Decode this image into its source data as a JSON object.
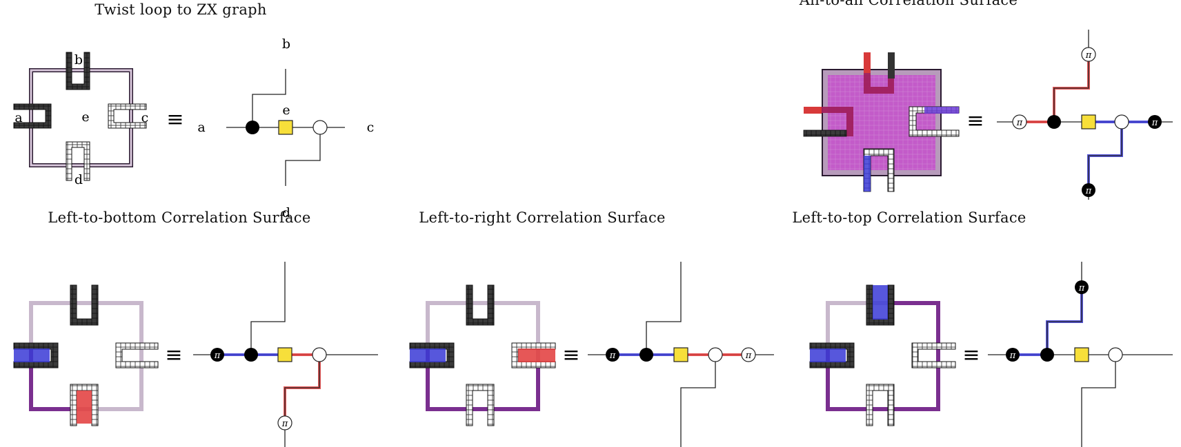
{
  "titles": {
    "twist": "Twist loop to ZX graph",
    "all": "All-to-all Correlation Surface",
    "bottom": "Left-to-bottom Correlation Surface",
    "right": "Left-to-right Correlation Surface",
    "top": "Left-to-top Correlation Surface"
  },
  "labels": {
    "a": "a",
    "b": "b",
    "c": "c",
    "d": "d",
    "e": "e",
    "equiv": "≡",
    "pi": "π"
  },
  "colors": {
    "x_spider": "#000000",
    "z_spider": "#ffffff",
    "hadamard": "#f7df3a",
    "red_surface": "#e23a3a",
    "blue_surface": "#3a3ad6",
    "purple_boundary": "#7a2f8f",
    "light_boundary": "#c8b8cc",
    "dark_block": "#444444"
  }
}
